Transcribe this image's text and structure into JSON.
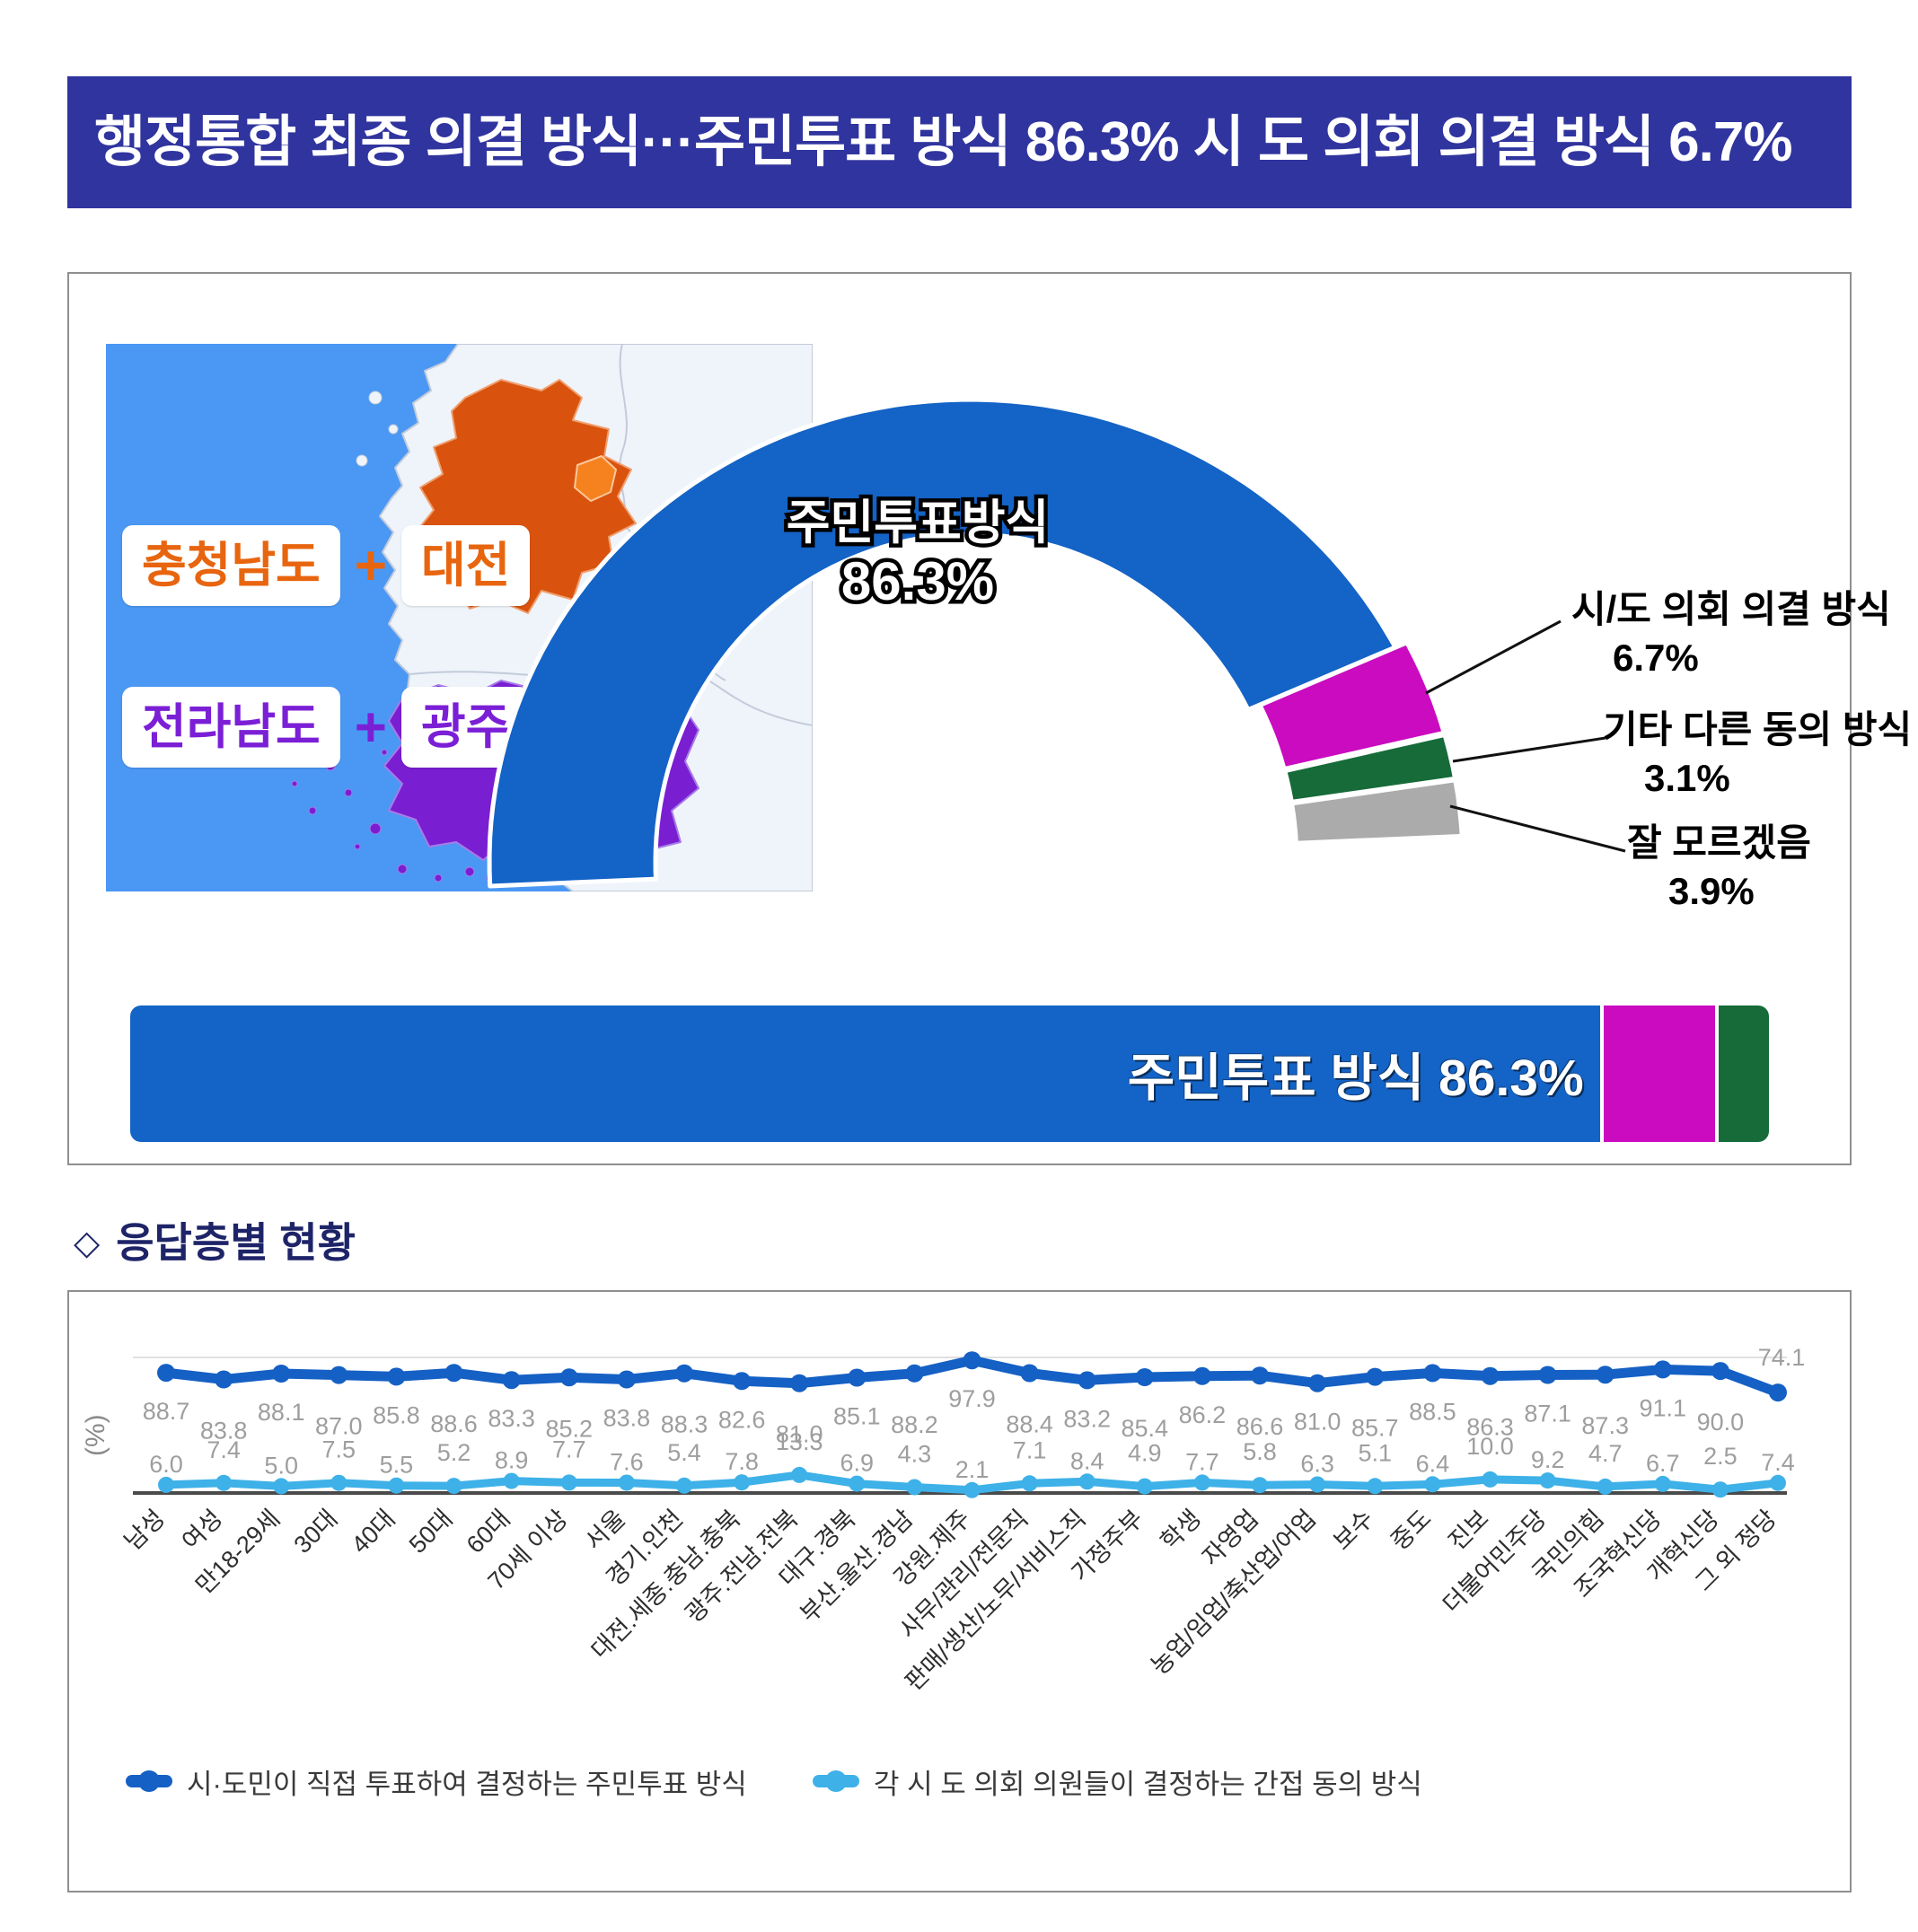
{
  "header": {
    "title": "행정통합 최종 의결 방식···주민투표 방식 86.3% 시 도 의회 의결 방식 6.7%"
  },
  "map": {
    "rows": [
      {
        "region": "충청남도",
        "plus": "+",
        "city": "대전",
        "color": "#E8650F"
      },
      {
        "region": "전라남도",
        "plus": "+",
        "city": "광주",
        "color": "#7B1FD6"
      }
    ]
  },
  "gauge": {
    "center_label": "주민투표방식",
    "center_value": "86.3%",
    "callouts": [
      {
        "name": "시/도 의회 의결 방식",
        "value": "6.7%"
      },
      {
        "name": "기타 다른 동의 방식",
        "value": "3.1%"
      },
      {
        "name": "잘 모르겠음",
        "value": "3.9%"
      }
    ]
  },
  "bar": {
    "label": "주민투표 방식 86.3%"
  },
  "section": {
    "marker": "◇",
    "title": "응답층별 현황"
  },
  "colors": {
    "header_bg": "#30349E",
    "map_sea": "#4A98F4",
    "donut_blue": "#1463C6",
    "magenta": "#CA0BC0",
    "green": "#166B39",
    "gray": "#ABABAB",
    "dark_line": "#1560C4",
    "light_line": "#3EB1E8"
  },
  "chart_data": [
    {
      "type": "pie",
      "variant": "half-donut",
      "title": "행정통합 최종 의결 방식",
      "labels": [
        "주민투표방식",
        "시/도 의회 의결 방식",
        "기타 다른 동의 방식",
        "잘 모르겠음"
      ],
      "values": [
        86.3,
        6.7,
        3.1,
        3.9
      ],
      "colors": [
        "#1463C6",
        "#CA0BC0",
        "#166B39",
        "#ABABAB"
      ]
    },
    {
      "type": "bar",
      "variant": "stacked-horizontal",
      "labels": [
        "주민투표 방식",
        "시/도 의회 의결 방식",
        "기타 다른 동의 방식"
      ],
      "values": [
        86.3,
        6.7,
        3.1
      ],
      "colors": [
        "#1463C6",
        "#CA0BC0",
        "#166B39"
      ],
      "bar_label": "주민투표 방식 86.3%",
      "xlim": [
        0,
        100
      ]
    },
    {
      "type": "line",
      "title": "응답층별 현황",
      "ylabel": "(%)",
      "ylim": [
        0,
        100
      ],
      "grid": "single-top-line",
      "legend_position": "bottom",
      "categories": [
        "남성",
        "여성",
        "만18-29세",
        "30대",
        "40대",
        "50대",
        "60대",
        "70세 이상",
        "서울",
        "경기.인천",
        "대전.세종.충남.충북",
        "광주.전남.전북",
        "대구.경북",
        "부산.울산.경남",
        "강원.제주",
        "사무/관리/전문직",
        "판매/생산/노무/서비스직",
        "가정주부",
        "학생",
        "자영업",
        "농업/임업/축산업/어업",
        "보수",
        "중도",
        "진보",
        "더불어민주당",
        "국민의힘",
        "조국혁신당",
        "개혁신당",
        "그 외 정당"
      ],
      "series": [
        {
          "name": "시·도민이 직접 투표하여 결정하는 주민투표 방식",
          "color": "#1560C4",
          "values": [
            88.7,
            83.8,
            88.1,
            87.0,
            85.8,
            88.6,
            83.3,
            85.2,
            83.8,
            88.3,
            82.6,
            81.0,
            85.1,
            88.2,
            97.9,
            88.4,
            83.2,
            85.4,
            86.2,
            86.6,
            81.0,
            85.7,
            88.5,
            86.3,
            87.1,
            87.3,
            91.1,
            90.0,
            74.1
          ]
        },
        {
          "name": "각 시 도 의회 의원들이 결정하는 간접 동의 방식",
          "color": "#3EB1E8",
          "values": [
            6.0,
            7.4,
            5.0,
            7.5,
            5.5,
            5.2,
            8.9,
            7.7,
            7.6,
            5.4,
            7.8,
            13.3,
            6.9,
            4.3,
            2.1,
            7.1,
            8.4,
            4.9,
            7.7,
            5.8,
            6.3,
            5.1,
            6.4,
            10.0,
            9.2,
            4.7,
            6.7,
            2.5,
            7.4
          ]
        }
      ]
    }
  ]
}
